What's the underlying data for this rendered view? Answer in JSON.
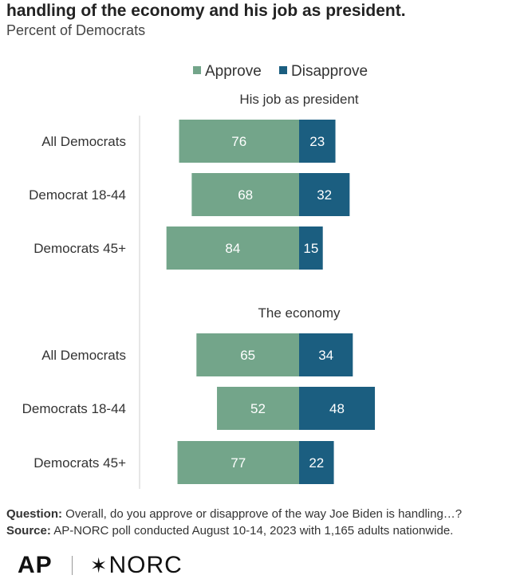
{
  "header": {
    "title": "handling of the economy and his job as president.",
    "subtitle": "Percent of Democrats"
  },
  "colors": {
    "approve": "#73a58a",
    "disapprove": "#1b5e80",
    "axis": "#cccccc"
  },
  "chart_data": {
    "type": "bar",
    "orientation": "diverging-horizontal",
    "legend": {
      "position": "top",
      "items": [
        "Approve",
        "Disapprove"
      ]
    },
    "panels": [
      {
        "title": "His job as president",
        "categories": [
          "All Democrats",
          "Democrat 18-44",
          "Democrats 45+"
        ],
        "series": [
          {
            "name": "Approve",
            "values": [
              76,
              68,
              84
            ]
          },
          {
            "name": "Disapprove",
            "values": [
              23,
              32,
              15
            ]
          }
        ]
      },
      {
        "title": "The economy",
        "categories": [
          "All Democrats",
          "Democrats 18-44",
          "Democrats 45+"
        ],
        "series": [
          {
            "name": "Approve",
            "values": [
              65,
              52,
              77
            ]
          },
          {
            "name": "Disapprove",
            "values": [
              34,
              48,
              22
            ]
          }
        ]
      }
    ]
  },
  "footer": {
    "question_label": "Question:",
    "question_text": " Overall, do you approve or disapprove of the way Joe Biden is handling…?",
    "source_label": "Source:",
    "source_text": " AP-NORC poll conducted August 10-14, 2023 with 1,165 adults nationwide."
  },
  "logos": {
    "ap": "AP",
    "norc": "NORC"
  }
}
